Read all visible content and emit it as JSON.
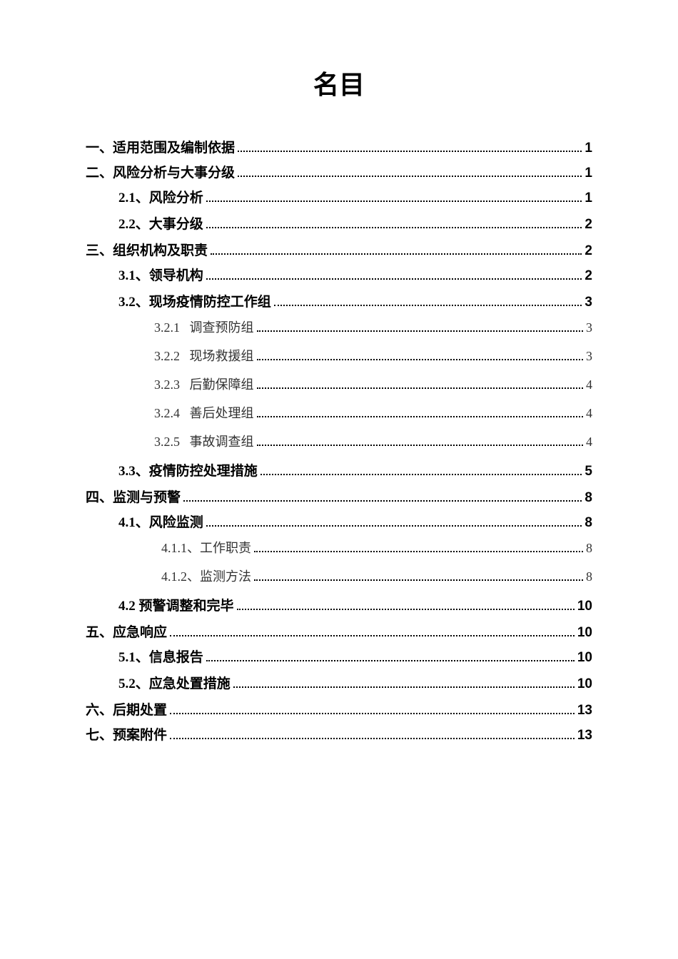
{
  "title": "名目",
  "entries": [
    {
      "level": "level-1",
      "label": "一、适用范围及编制依据",
      "page": "1"
    },
    {
      "level": "level-1",
      "label": "二、风险分析与大事分级",
      "page": "1"
    },
    {
      "level": "level-2",
      "label": "2.1、风险分析",
      "page": "1",
      "num_prefix": "2.1"
    },
    {
      "level": "level-2",
      "label": "2.2、大事分级",
      "page": "2",
      "num_prefix": "2.2"
    },
    {
      "level": "level-1",
      "label": "三、组织机构及职责",
      "page": "2"
    },
    {
      "level": "level-2",
      "label": "3.1、领导机构",
      "page": "2",
      "num_prefix": "3.1"
    },
    {
      "level": "level-2",
      "label": "3.2、现场疫情防控工作组",
      "page": "3",
      "num_prefix": "3.2"
    },
    {
      "level": "level-3",
      "num": "3.2.1",
      "text": "调查预防组",
      "page": "3"
    },
    {
      "level": "level-3",
      "num": "3.2.2",
      "text": "现场救援组",
      "page": "3"
    },
    {
      "level": "level-3",
      "num": "3.2.3",
      "text": "后勤保障组",
      "page": "4"
    },
    {
      "level": "level-3",
      "num": "3.2.4",
      "text": "善后处理组",
      "page": "4"
    },
    {
      "level": "level-3",
      "num": "3.2.5",
      "text": "事故调查组",
      "page": "4"
    },
    {
      "level": "level-2",
      "label": "3.3、疫情防控处理措施",
      "page": "5",
      "num_prefix": "3.3"
    },
    {
      "level": "level-1",
      "label": "四、监测与预警",
      "page": "8"
    },
    {
      "level": "level-2",
      "label": "4.1、风险监测",
      "page": "8",
      "num_prefix": "4.1"
    },
    {
      "level": "level-3b",
      "num": "4.1.1",
      "text": "、工作职责",
      "page": "8"
    },
    {
      "level": "level-3b",
      "num": "4.1.2",
      "text": "、监测方法",
      "page": "8"
    },
    {
      "level": "level-2",
      "label": "4.2 预警调整和完毕",
      "page": "10",
      "num_prefix": "4.2"
    },
    {
      "level": "level-1",
      "label": "五、应急响应",
      "page": "10"
    },
    {
      "level": "level-2",
      "label": "5.1、信息报告",
      "page": "10",
      "num_prefix": "5.1"
    },
    {
      "level": "level-2",
      "label": "5.2、应急处置措施",
      "page": "10",
      "num_prefix": "5.2"
    },
    {
      "level": "level-1",
      "label": "六、后期处置",
      "page": "13"
    },
    {
      "level": "level-1",
      "label": "七、预案附件",
      "page": "13"
    }
  ]
}
